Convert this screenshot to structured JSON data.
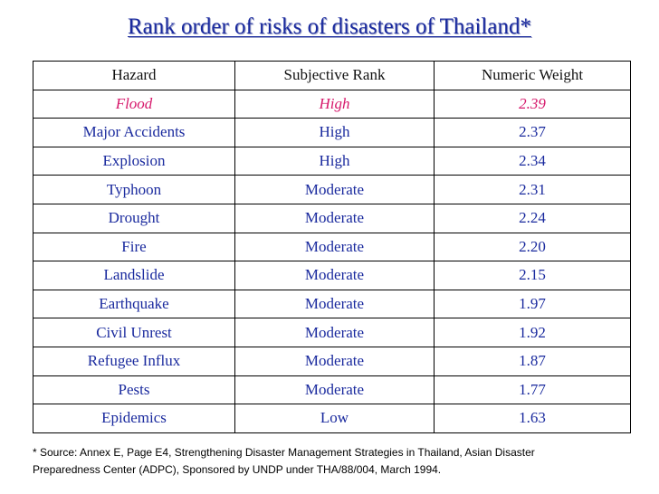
{
  "title": "Rank order of risks of disasters of Thailand*",
  "table": {
    "headers": [
      "Hazard",
      "Subjective Rank",
      "Numeric Weight"
    ],
    "rows": [
      [
        "Flood",
        "High",
        "2.39"
      ],
      [
        "Major Accidents",
        "High",
        "2.37"
      ],
      [
        "Explosion",
        "High",
        "2.34"
      ],
      [
        "Typhoon",
        "Moderate",
        "2.31"
      ],
      [
        "Drought",
        "Moderate",
        "2.24"
      ],
      [
        "Fire",
        "Moderate",
        "2.20"
      ],
      [
        "Landslide",
        "Moderate",
        "2.15"
      ],
      [
        "Earthquake",
        "Moderate",
        "1.97"
      ],
      [
        "Civil Unrest",
        "Moderate",
        "1.92"
      ],
      [
        "Refugee Influx",
        "Moderate",
        "1.87"
      ],
      [
        "Pests",
        "Moderate",
        "1.77"
      ],
      [
        "Epidemics",
        "Low",
        "1.63"
      ]
    ]
  },
  "footnote": {
    "line1": "* Source: Annex E, Page E4, Strengthening Disaster Management Strategies in Thailand, Asian Disaster",
    "line2": "Preparedness Center (ADPC), Sponsored by UNDP under THA/88/004, March 1994."
  },
  "colors": {
    "title": "#1a2a9e",
    "highlight_row": "#d6186b",
    "data_text": "#1a2a9e"
  }
}
